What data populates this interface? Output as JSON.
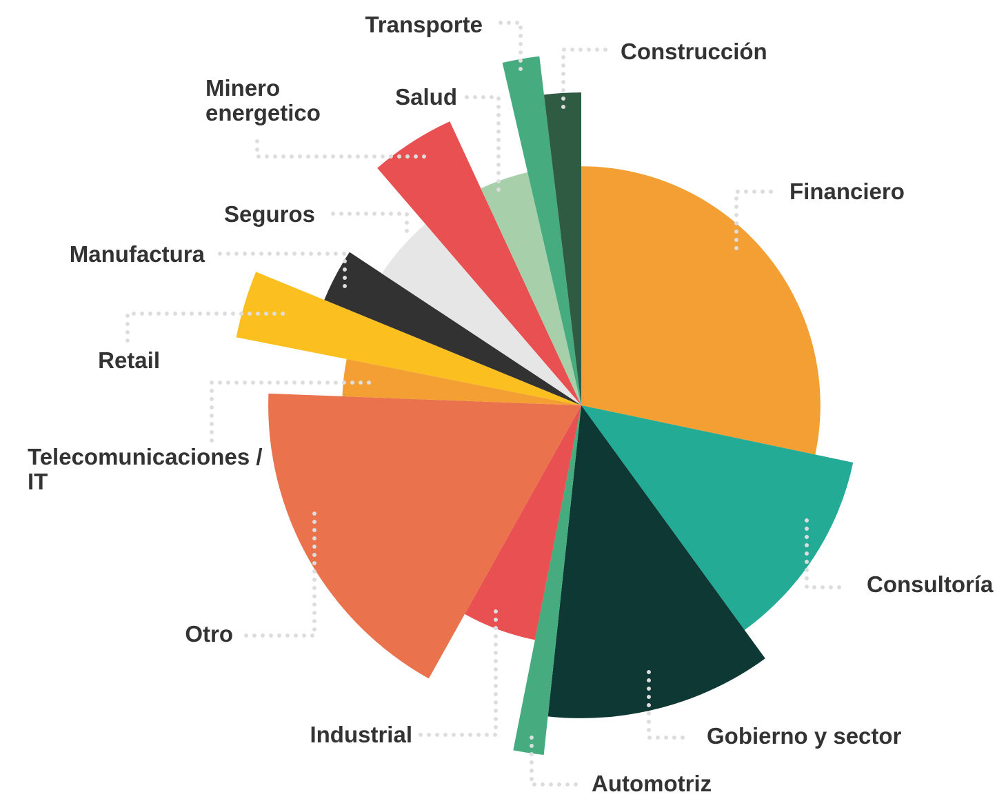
{
  "chart_data": {
    "type": "rose",
    "categories": [
      "Financiero",
      "Consultoría",
      "Gobierno y sector",
      "Automotriz",
      "Industrial",
      "Otro",
      "Telecomunicaciones / IT",
      "Retail",
      "Manufactura",
      "Seguros",
      "Minero energetico",
      "Salud",
      "Transporte",
      "Construcción"
    ],
    "values": [
      28.3,
      11.7,
      11.7,
      1.4,
      5,
      17.5,
      2.5,
      3.1,
      3.1,
      4.4,
      4.4,
      3.3,
      1.7,
      1.9
    ],
    "radii": [
      68,
      79,
      89,
      100,
      68,
      89,
      68,
      100,
      79,
      68,
      89,
      68,
      100,
      89
    ],
    "rlim": [
      0,
      100
    ],
    "colors": [
      "#f39f33",
      "#23ab96",
      "#0d3833",
      "#46ab7e",
      "#e95051",
      "#ea724c",
      "#f39f33",
      "#fbc020",
      "#323232",
      "#e6e6e6",
      "#e95051",
      "#a7cfaa",
      "#46ab7e",
      "#2f5b42"
    ]
  }
}
